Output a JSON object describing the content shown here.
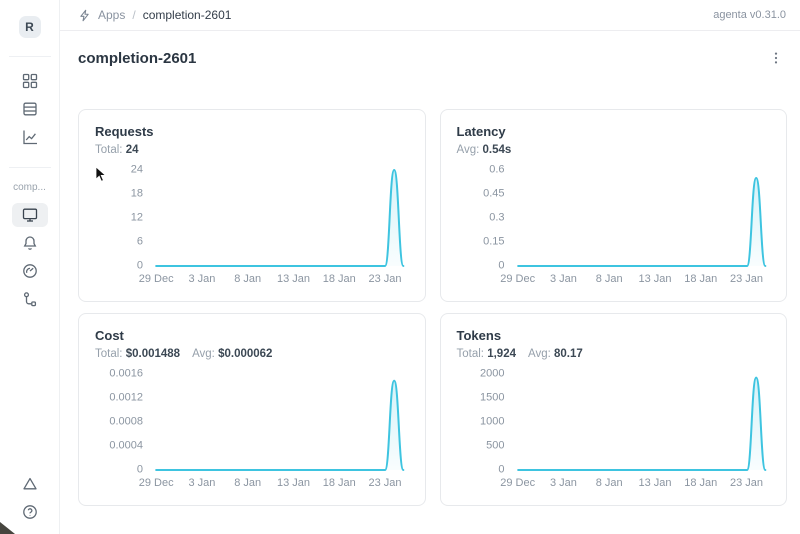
{
  "header": {
    "breadcrumb": {
      "section": "Apps",
      "separator": "/",
      "current": "completion-2601"
    },
    "version": "agenta v0.31.0"
  },
  "sidebar": {
    "logo_text": "R",
    "workspace_label": "comp...",
    "nav_top": [
      "apps",
      "test-sets",
      "analytics"
    ],
    "nav_app": [
      "overview",
      "notifications",
      "monitoring",
      "traces"
    ],
    "nav_bottom": [
      "alerts",
      "help"
    ]
  },
  "page": {
    "title": "completion-2601"
  },
  "theme": {
    "line_color": "#3ec4e0",
    "fill_top": "rgba(62,196,224,0.22)",
    "fill_bottom": "rgba(62,196,224,0.03)"
  },
  "chart_data": [
    {
      "type": "area",
      "title": "Requests",
      "stats": [
        {
          "label": "Total:",
          "value": "24"
        }
      ],
      "x": [
        "29 Dec",
        "30 Dec",
        "31 Dec",
        "1 Jan",
        "2 Jan",
        "3 Jan",
        "4 Jan",
        "5 Jan",
        "6 Jan",
        "7 Jan",
        "8 Jan",
        "9 Jan",
        "10 Jan",
        "11 Jan",
        "12 Jan",
        "13 Jan",
        "14 Jan",
        "15 Jan",
        "16 Jan",
        "17 Jan",
        "18 Jan",
        "19 Jan",
        "20 Jan",
        "21 Jan",
        "22 Jan",
        "23 Jan",
        "24 Jan",
        "25 Jan"
      ],
      "values": [
        0,
        0,
        0,
        0,
        0,
        0,
        0,
        0,
        0,
        0,
        0,
        0,
        0,
        0,
        0,
        0,
        0,
        0,
        0,
        0,
        0,
        0,
        0,
        0,
        0,
        0,
        24,
        0
      ],
      "ytick_values": [
        0,
        6,
        12,
        18,
        24
      ],
      "ytick_labels": [
        "0",
        "6",
        "12",
        "18",
        "24"
      ],
      "xtick_labels": [
        "29 Dec",
        "3 Jan",
        "8 Jan",
        "13 Jan",
        "18 Jan",
        "23 Jan"
      ],
      "xtick_indices": [
        0,
        5,
        10,
        15,
        20,
        25
      ],
      "ylim": [
        0,
        24
      ],
      "grid": false,
      "legend": false
    },
    {
      "type": "area",
      "title": "Latency",
      "stats": [
        {
          "label": "Avg:",
          "value": "0.54s"
        }
      ],
      "x": [
        "29 Dec",
        "30 Dec",
        "31 Dec",
        "1 Jan",
        "2 Jan",
        "3 Jan",
        "4 Jan",
        "5 Jan",
        "6 Jan",
        "7 Jan",
        "8 Jan",
        "9 Jan",
        "10 Jan",
        "11 Jan",
        "12 Jan",
        "13 Jan",
        "14 Jan",
        "15 Jan",
        "16 Jan",
        "17 Jan",
        "18 Jan",
        "19 Jan",
        "20 Jan",
        "21 Jan",
        "22 Jan",
        "23 Jan",
        "24 Jan",
        "25 Jan"
      ],
      "values": [
        0,
        0,
        0,
        0,
        0,
        0,
        0,
        0,
        0,
        0,
        0,
        0,
        0,
        0,
        0,
        0,
        0,
        0,
        0,
        0,
        0,
        0,
        0,
        0,
        0,
        0,
        0.55,
        0
      ],
      "ytick_values": [
        0,
        0.15,
        0.3,
        0.45,
        0.6
      ],
      "ytick_labels": [
        "0",
        "0.15",
        "0.3",
        "0.45",
        "0.6"
      ],
      "xtick_labels": [
        "29 Dec",
        "3 Jan",
        "8 Jan",
        "13 Jan",
        "18 Jan",
        "23 Jan"
      ],
      "xtick_indices": [
        0,
        5,
        10,
        15,
        20,
        25
      ],
      "ylim": [
        0,
        0.6
      ],
      "grid": false,
      "legend": false
    },
    {
      "type": "area",
      "title": "Cost",
      "stats": [
        {
          "label": "Total:",
          "value": "$0.001488"
        },
        {
          "label": "Avg:",
          "value": "$0.000062"
        }
      ],
      "x": [
        "29 Dec",
        "30 Dec",
        "31 Dec",
        "1 Jan",
        "2 Jan",
        "3 Jan",
        "4 Jan",
        "5 Jan",
        "6 Jan",
        "7 Jan",
        "8 Jan",
        "9 Jan",
        "10 Jan",
        "11 Jan",
        "12 Jan",
        "13 Jan",
        "14 Jan",
        "15 Jan",
        "16 Jan",
        "17 Jan",
        "18 Jan",
        "19 Jan",
        "20 Jan",
        "21 Jan",
        "22 Jan",
        "23 Jan",
        "24 Jan",
        "25 Jan"
      ],
      "values": [
        0,
        0,
        0,
        0,
        0,
        0,
        0,
        0,
        0,
        0,
        0,
        0,
        0,
        0,
        0,
        0,
        0,
        0,
        0,
        0,
        0,
        0,
        0,
        0,
        0,
        0,
        0.001488,
        0
      ],
      "ytick_values": [
        0,
        0.0004,
        0.0008,
        0.0012,
        0.0016
      ],
      "ytick_labels": [
        "0",
        "0.0004",
        "0.0008",
        "0.0012",
        "0.0016"
      ],
      "xtick_labels": [
        "29 Dec",
        "3 Jan",
        "8 Jan",
        "13 Jan",
        "18 Jan",
        "23 Jan"
      ],
      "xtick_indices": [
        0,
        5,
        10,
        15,
        20,
        25
      ],
      "ylim": [
        0,
        0.0016
      ],
      "grid": false,
      "legend": false
    },
    {
      "type": "area",
      "title": "Tokens",
      "stats": [
        {
          "label": "Total:",
          "value": "1,924"
        },
        {
          "label": "Avg:",
          "value": "80.17"
        }
      ],
      "x": [
        "29 Dec",
        "30 Dec",
        "31 Dec",
        "1 Jan",
        "2 Jan",
        "3 Jan",
        "4 Jan",
        "5 Jan",
        "6 Jan",
        "7 Jan",
        "8 Jan",
        "9 Jan",
        "10 Jan",
        "11 Jan",
        "12 Jan",
        "13 Jan",
        "14 Jan",
        "15 Jan",
        "16 Jan",
        "17 Jan",
        "18 Jan",
        "19 Jan",
        "20 Jan",
        "21 Jan",
        "22 Jan",
        "23 Jan",
        "24 Jan",
        "25 Jan"
      ],
      "values": [
        0,
        0,
        0,
        0,
        0,
        0,
        0,
        0,
        0,
        0,
        0,
        0,
        0,
        0,
        0,
        0,
        0,
        0,
        0,
        0,
        0,
        0,
        0,
        0,
        0,
        0,
        1924,
        0
      ],
      "ytick_values": [
        0,
        500,
        1000,
        1500,
        2000
      ],
      "ytick_labels": [
        "0",
        "500",
        "1000",
        "1500",
        "2000"
      ],
      "xtick_labels": [
        "29 Dec",
        "3 Jan",
        "8 Jan",
        "13 Jan",
        "18 Jan",
        "23 Jan"
      ],
      "xtick_indices": [
        0,
        5,
        10,
        15,
        20,
        25
      ],
      "ylim": [
        0,
        2000
      ],
      "grid": false,
      "legend": false
    }
  ]
}
